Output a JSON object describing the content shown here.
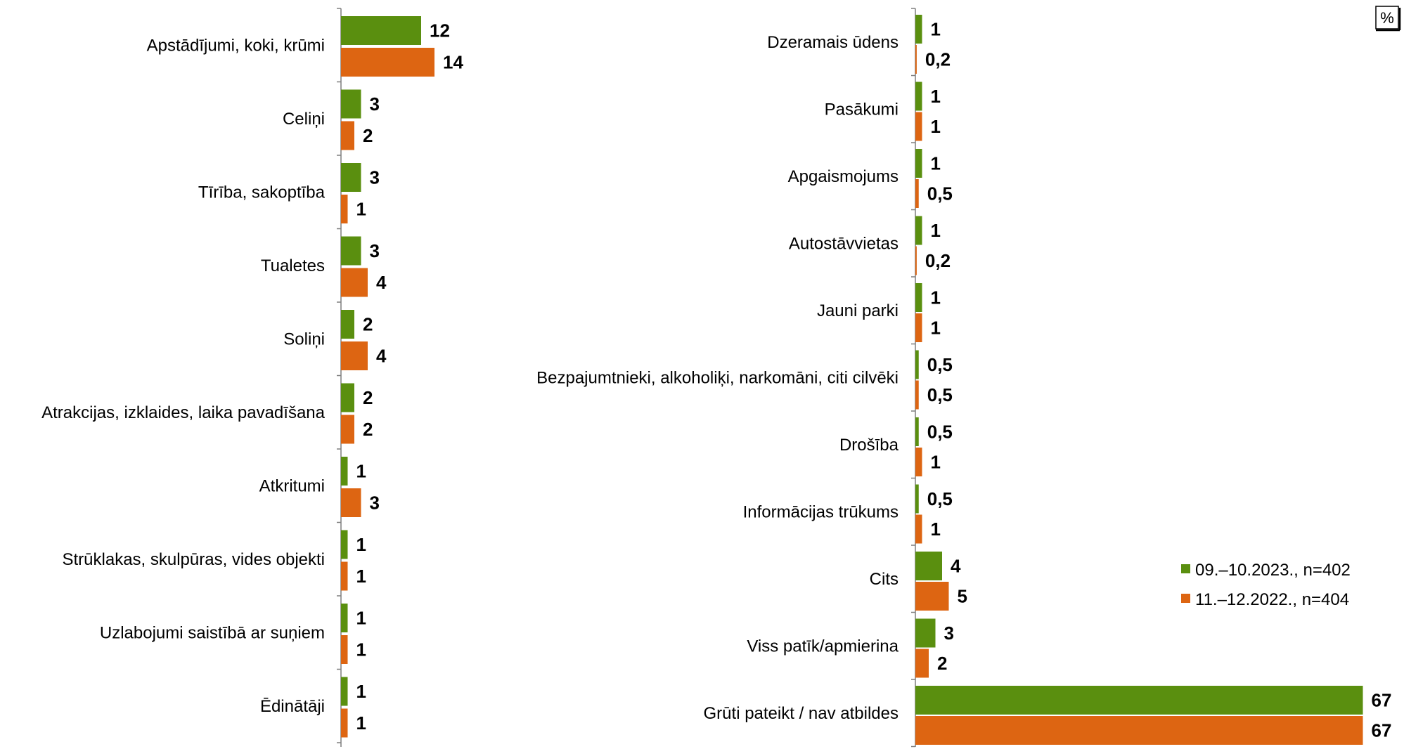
{
  "unit_label": "%",
  "colors": {
    "series_2023": "#5a8f0f",
    "series_2022": "#dd6512",
    "axis": "#7f7f7f"
  },
  "legend": [
    {
      "label": "09.–10.2023., n=402",
      "color": "#5a8f0f"
    },
    {
      "label": "11.–12.2022., n=404",
      "color": "#dd6512"
    }
  ],
  "chart_data": [
    {
      "type": "bar",
      "orientation": "horizontal",
      "categories": [
        "Apstādījumi, koki, krūmi",
        "Celiņi",
        "Tīrība, sakoptība",
        "Tualetes",
        "Soliņi",
        "Atrakcijas, izklaides, laika pavadīšana",
        "Atkritumi",
        "Strūklakas, skulpūras, vides objekti",
        "Uzlabojumi saistībā ar suņiem",
        "Ēdinātāji"
      ],
      "series": [
        {
          "name": "09.–10.2023., n=402",
          "values": [
            12,
            3,
            3,
            3,
            2,
            2,
            1,
            1,
            1,
            1
          ],
          "labels": [
            "12",
            "3",
            "3",
            "3",
            "2",
            "2",
            "1",
            "1",
            "1",
            "1"
          ]
        },
        {
          "name": "11.–12.2022., n=404",
          "values": [
            14,
            2,
            1,
            4,
            4,
            2,
            3,
            1,
            1,
            1
          ],
          "labels": [
            "14",
            "2",
            "1",
            "4",
            "4",
            "2",
            "3",
            "1",
            "1",
            "1"
          ]
        }
      ]
    },
    {
      "type": "bar",
      "orientation": "horizontal",
      "categories": [
        "Dzeramais ūdens",
        "Pasākumi",
        "Apgaismojums",
        "Autostāvvietas",
        "Jauni parki",
        "Bezpajumtnieki, alkoholiķi, narkomāni, citi cilvēki",
        "Drošība",
        "Informācijas trūkums",
        "Cits",
        "Viss patīk/apmierina",
        "Grūti pateikt / nav atbildes"
      ],
      "series": [
        {
          "name": "09.–10.2023., n=402",
          "values": [
            1,
            1,
            1,
            1,
            1,
            0.5,
            0.5,
            0.5,
            4,
            3,
            67
          ],
          "labels": [
            "1",
            "1",
            "1",
            "1",
            "1",
            "0,5",
            "0,5",
            "0,5",
            "4",
            "3",
            "67"
          ]
        },
        {
          "name": "11.–12.2022., n=404",
          "values": [
            0.2,
            1,
            0.5,
            0.2,
            1,
            0.5,
            1,
            1,
            5,
            2,
            67
          ],
          "labels": [
            "0,2",
            "1",
            "0,5",
            "0,2",
            "1",
            "0,5",
            "1",
            "1",
            "5",
            "2",
            "67"
          ]
        }
      ]
    }
  ]
}
